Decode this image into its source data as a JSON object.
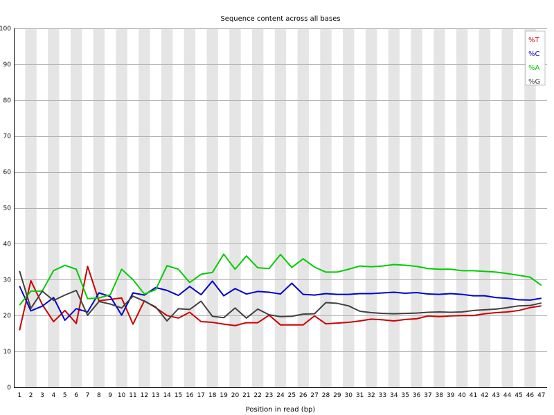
{
  "chart_data": {
    "type": "line",
    "title": "Sequence content across all bases",
    "xlabel": "Position in read (bp)",
    "ylabel": "",
    "ylim": [
      0,
      100
    ],
    "yticks": [
      0,
      10,
      20,
      30,
      40,
      50,
      60,
      70,
      80,
      90,
      100
    ],
    "x": [
      1,
      2,
      3,
      4,
      5,
      6,
      7,
      8,
      9,
      10,
      11,
      12,
      13,
      14,
      15,
      16,
      17,
      18,
      19,
      20,
      21,
      22,
      23,
      24,
      25,
      26,
      27,
      28,
      29,
      30,
      31,
      32,
      33,
      34,
      35,
      36,
      37,
      38,
      39,
      40,
      41,
      42,
      43,
      44,
      45,
      46,
      47
    ],
    "grid": true,
    "legend_position": "top-right",
    "series": [
      {
        "name": "%T",
        "color": "#cc0000",
        "values": [
          15.9,
          29.7,
          23.1,
          18.3,
          21.4,
          17.8,
          33.7,
          24.1,
          24.5,
          24.9,
          17.6,
          24.1,
          22.2,
          20.0,
          19.3,
          20.9,
          18.3,
          18.1,
          17.6,
          17.2,
          18.0,
          18.0,
          20.1,
          17.4,
          17.4,
          17.4,
          19.9,
          17.7,
          17.9,
          18.1,
          18.5,
          19.0,
          18.8,
          18.5,
          18.9,
          19.1,
          19.9,
          19.7,
          19.9,
          20.0,
          20.0,
          20.5,
          20.8,
          21.0,
          21.4,
          22.2,
          22.7
        ]
      },
      {
        "name": "%C",
        "color": "#0000cc",
        "values": [
          28.2,
          21.3,
          22.6,
          25.0,
          18.7,
          21.9,
          21.0,
          26.3,
          25.3,
          20.1,
          26.3,
          25.7,
          27.8,
          27.0,
          25.6,
          28.1,
          25.8,
          29.6,
          25.5,
          27.5,
          26.0,
          26.7,
          26.5,
          26.0,
          29.0,
          25.9,
          25.7,
          26.1,
          25.9,
          25.9,
          26.1,
          26.1,
          26.3,
          26.5,
          26.2,
          26.4,
          26.0,
          25.9,
          26.1,
          25.9,
          25.5,
          25.5,
          25.0,
          24.8,
          24.4,
          24.3,
          24.8
        ]
      },
      {
        "name": "%A",
        "color": "#00cc00",
        "values": [
          22.9,
          26.8,
          26.8,
          32.5,
          34.0,
          32.9,
          24.7,
          24.9,
          25.8,
          32.9,
          30.0,
          26.0,
          27.2,
          33.9,
          32.9,
          29.2,
          31.5,
          32.0,
          37.1,
          32.9,
          36.6,
          33.3,
          33.1,
          37.0,
          33.4,
          35.8,
          33.5,
          32.1,
          32.1,
          32.9,
          33.8,
          33.6,
          33.8,
          34.2,
          34.0,
          33.7,
          33.1,
          32.9,
          32.9,
          32.5,
          32.5,
          32.3,
          32.1,
          31.7,
          31.2,
          30.7,
          28.4
        ]
      },
      {
        "name": "%G",
        "color": "#404040",
        "values": [
          32.4,
          22.0,
          26.8,
          24.2,
          25.7,
          27.0,
          20.1,
          23.9,
          23.2,
          22.1,
          25.4,
          24.0,
          22.4,
          18.5,
          21.9,
          21.7,
          24.0,
          19.8,
          19.4,
          22.1,
          19.3,
          21.8,
          20.2,
          19.7,
          19.8,
          20.4,
          20.5,
          23.6,
          23.4,
          22.7,
          21.2,
          20.8,
          20.6,
          20.5,
          20.6,
          20.7,
          20.9,
          21.0,
          20.9,
          21.0,
          21.4,
          21.6,
          21.8,
          22.2,
          22.7,
          22.8,
          23.5
        ]
      }
    ]
  }
}
